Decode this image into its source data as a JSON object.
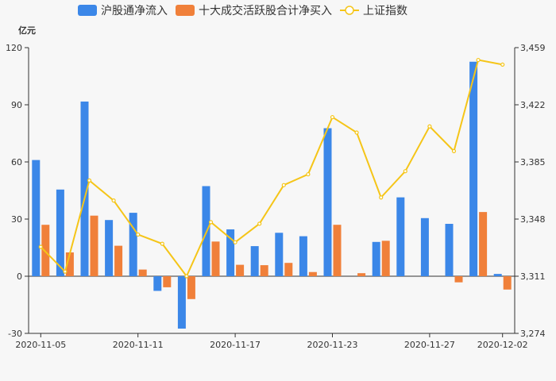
{
  "chart_data": {
    "type": "bar",
    "unit_label": "亿元",
    "x_tick_labels": [
      "2020-11-05",
      "2020-11-11",
      "2020-11-17",
      "2020-11-23",
      "2020-11-27",
      "2020-12-02"
    ],
    "x": [
      "2020-11-05",
      "2020-11-06",
      "2020-11-09",
      "2020-11-10",
      "2020-11-11",
      "2020-11-12",
      "2020-11-13",
      "2020-11-16",
      "2020-11-17",
      "2020-11-18",
      "2020-11-19",
      "2020-11-20",
      "2020-11-23",
      "2020-11-24",
      "2020-11-25",
      "2020-11-26",
      "2020-11-27",
      "2020-11-30",
      "2020-12-01",
      "2020-12-02"
    ],
    "series": [
      {
        "name": "沪股通净流入",
        "type": "bar",
        "axis": "left",
        "color": "#3b87e8",
        "values": [
          61,
          45.5,
          91.7,
          29.5,
          33.3,
          -7.7,
          -27.5,
          47.3,
          24.6,
          15.8,
          22.8,
          21,
          77.7,
          0,
          18,
          41.4,
          30.5,
          27.5,
          112.6,
          1.2
        ]
      },
      {
        "name": "十大成交活跃股合计净买入",
        "type": "bar",
        "axis": "left",
        "color": "#f0803a",
        "values": [
          27,
          12.5,
          31.8,
          16,
          3.5,
          -5.8,
          -12,
          18.2,
          6,
          5.8,
          7,
          2.2,
          27,
          1.6,
          18.6,
          0,
          0,
          -3.2,
          33.7,
          -7
        ]
      },
      {
        "name": "上证指数",
        "type": "line",
        "axis": "right",
        "color": "#f5c518",
        "values": [
          3330,
          3314,
          3373,
          3360,
          3338,
          3332,
          3311,
          3346,
          3333,
          3345,
          3370,
          3377,
          3414,
          3404,
          3362,
          3379,
          3408,
          3392,
          3451,
          3448
        ]
      }
    ],
    "ylim_left": [
      -30,
      120
    ],
    "yticks_left": [
      -30,
      0,
      30,
      60,
      90,
      120
    ],
    "ylim_right": [
      3274,
      3459
    ],
    "yticks_right": [
      "3,274",
      "3,311",
      "3,348",
      "3,385",
      "3,422",
      "3,459"
    ],
    "legend_position": "top-center",
    "grid": false
  }
}
